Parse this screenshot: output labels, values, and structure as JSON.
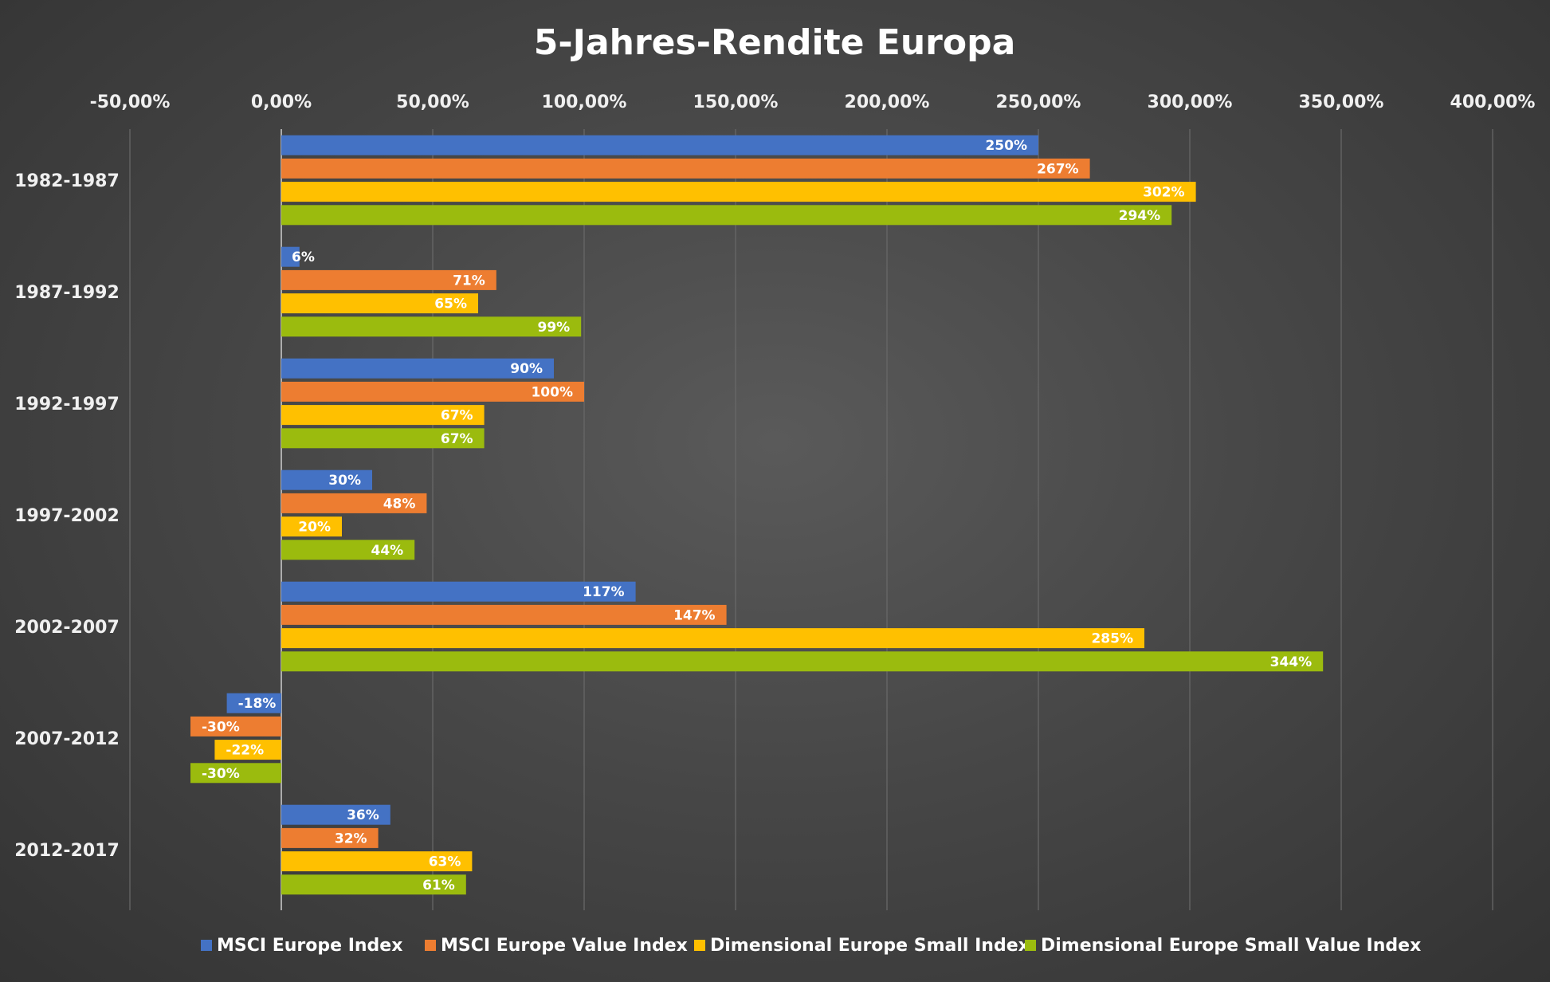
{
  "chart_data": {
    "type": "bar",
    "orientation": "horizontal",
    "title": "5-Jahres-Rendite Europa",
    "categories": [
      "1982-1987",
      "1987-1992",
      "1992-1997",
      "1997-2002",
      "2002-2007",
      "2007-2012",
      "2012-2017"
    ],
    "xlim": [
      -50,
      400
    ],
    "xticks": [
      -50,
      0,
      50,
      100,
      150,
      200,
      250,
      300,
      350,
      400
    ],
    "xtick_labels": [
      "-50,00%",
      "0,00%",
      "50,00%",
      "100,00%",
      "150,00%",
      "200,00%",
      "250,00%",
      "300,00%",
      "350,00%",
      "400,00%"
    ],
    "grid": true,
    "legend_position": "bottom",
    "series": [
      {
        "name": "MSCI Europe Index",
        "color": "#4472c4",
        "values": [
          250,
          6,
          90,
          30,
          117,
          -18,
          36
        ],
        "labels": [
          "250%",
          "6%",
          "90%",
          "30%",
          "117%",
          "-18%",
          "36%"
        ]
      },
      {
        "name": "MSCI Europe Value Index",
        "color": "#ed7d31",
        "values": [
          267,
          71,
          100,
          48,
          147,
          -30,
          32
        ],
        "labels": [
          "267%",
          "71%",
          "100%",
          "48%",
          "147%",
          "-30%",
          "32%"
        ]
      },
      {
        "name": "Dimensional Europe Small Index",
        "color": "#ffc000",
        "values": [
          302,
          65,
          67,
          20,
          285,
          -22,
          63
        ],
        "labels": [
          "302%",
          "65%",
          "67%",
          "20%",
          "285%",
          "-22%",
          "63%"
        ]
      },
      {
        "name": "Dimensional Europe Small Value Index",
        "color": "#9bbb0e",
        "values": [
          294,
          99,
          67,
          44,
          344,
          -30,
          61
        ],
        "labels": [
          "294%",
          "99%",
          "67%",
          "44%",
          "344%",
          "-30%",
          "61%"
        ]
      }
    ]
  }
}
